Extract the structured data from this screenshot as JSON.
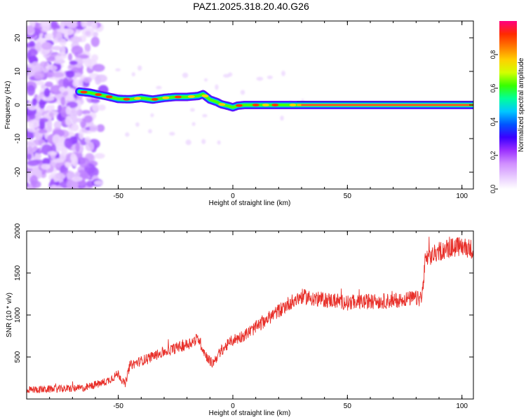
{
  "title": "PAZ1.2025.318.20.40.G26",
  "chart_data": [
    {
      "type": "heatmap",
      "title": "PAZ1.2025.318.20.40.G26",
      "xlabel": "Height of straight line (km)",
      "ylabel": "Frequency (Hz)",
      "xlim": [
        -90,
        105
      ],
      "ylim": [
        -25,
        25
      ],
      "xticks": [
        -50,
        0,
        50,
        100
      ],
      "yticks": [
        20,
        10,
        0,
        -10,
        -20
      ],
      "ridge": {
        "x": [
          -67,
          -62,
          -58,
          -55,
          -50,
          -45,
          -40,
          -35,
          -30,
          -25,
          -20,
          -15,
          -13,
          -10,
          -7,
          -5,
          -2,
          0,
          2,
          5,
          10,
          15,
          20,
          25,
          30,
          40,
          60,
          80,
          100,
          105
        ],
        "y": [
          4.0,
          3.6,
          3.0,
          2.6,
          1.8,
          1.7,
          2.1,
          1.6,
          2.1,
          2.4,
          2.4,
          2.7,
          3.2,
          1.6,
          0.9,
          0.2,
          -0.3,
          -0.7,
          -0.2,
          0.0,
          0.0,
          0.0,
          0.0,
          0.0,
          0.0,
          0.0,
          0.0,
          0.0,
          0.0,
          0.0
        ]
      },
      "noise_region": {
        "x": [
          -90,
          -55
        ],
        "y": [
          -25,
          25
        ]
      },
      "colorbar": {
        "label": "Normalized spectral amplitude",
        "range": [
          0,
          1
        ],
        "ticks": [
          "0.0",
          "0.2",
          "0.4",
          "0.6",
          "0.8"
        ],
        "colors": [
          "#ffffff",
          "#e7c8ff",
          "#cf8cff",
          "#9b30ff",
          "#3a00ff",
          "#0055ff",
          "#00c8ff",
          "#00ff9a",
          "#37ff00",
          "#d2ff00",
          "#ffd000",
          "#ff7a00",
          "#ff2a00",
          "#ff0080"
        ]
      }
    },
    {
      "type": "line",
      "xlabel": "Height of straight line (km)",
      "ylabel": "SNR (10 * v/v)",
      "xlim": [
        -90,
        105
      ],
      "ylim": [
        0,
        2000
      ],
      "xticks": [
        -50,
        0,
        50,
        100
      ],
      "yticks": [
        500,
        1000,
        1500,
        2000
      ],
      "series": [
        {
          "name": "SNR",
          "color": "#e8302a",
          "trend_x": [
            -90,
            -75,
            -65,
            -55,
            -50,
            -47,
            -45,
            -30,
            -20,
            -15,
            -12,
            -9,
            -5,
            0,
            5,
            10,
            15,
            20,
            25,
            30,
            35,
            40,
            45,
            50,
            60,
            70,
            75,
            80,
            82,
            83,
            84,
            90,
            95,
            100,
            105
          ],
          "trend_y": [
            110,
            120,
            130,
            210,
            300,
            170,
            400,
            560,
            650,
            720,
            530,
            420,
            580,
            700,
            760,
            850,
            950,
            1050,
            1150,
            1220,
            1200,
            1180,
            1170,
            1150,
            1160,
            1170,
            1190,
            1200,
            1180,
            1320,
            1650,
            1760,
            1800,
            1820,
            1780
          ],
          "noise_amplitude": 80
        }
      ]
    }
  ]
}
